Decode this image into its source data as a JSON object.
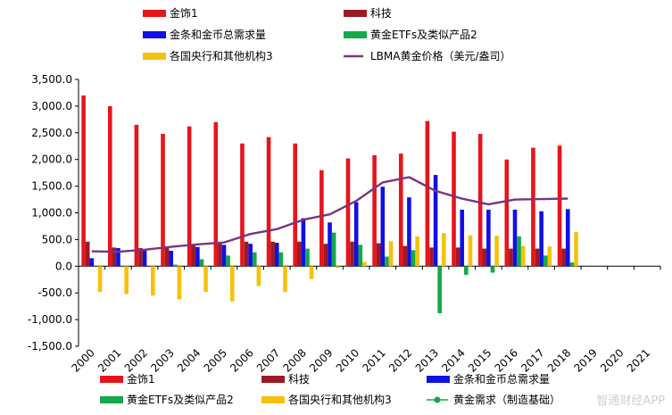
{
  "chart_data": {
    "type": "bar",
    "title": "",
    "xlabel": "",
    "ylabel": "",
    "ylim": [
      -1500,
      3500
    ],
    "yticks": [
      -1500,
      -1000,
      -500,
      0,
      500,
      1000,
      1500,
      2000,
      2500,
      3000,
      3500
    ],
    "ytick_labels": [
      "-1,500.0",
      "-1,000.0",
      "-500.0",
      "0.0",
      "500.0",
      "1,000.0",
      "1,500.0",
      "2,000.0",
      "2,500.0",
      "3,000.0",
      "3,500.0"
    ],
    "categories": [
      "2000",
      "2001",
      "2002",
      "2003",
      "2004",
      "2005",
      "2006",
      "2007",
      "2008",
      "2009",
      "2010",
      "2011",
      "2012",
      "2013",
      "2014",
      "2015",
      "2016",
      "2017",
      "2018",
      "2019",
      "2020",
      "2021"
    ],
    "series": [
      {
        "name": "金饰1",
        "kind": "bar",
        "color": "#e8141b",
        "values": [
          3200,
          3000,
          2650,
          2480,
          2620,
          2700,
          2300,
          2420,
          2300,
          1800,
          2020,
          2080,
          2110,
          2720,
          2520,
          2480,
          2000,
          2220,
          2260,
          null,
          null,
          null
        ]
      },
      {
        "name": "科技",
        "kind": "bar",
        "color": "#9b1b24",
        "values": [
          460,
          350,
          340,
          370,
          410,
          440,
          460,
          460,
          460,
          420,
          460,
          430,
          380,
          350,
          350,
          330,
          330,
          330,
          330,
          null,
          null,
          null
        ]
      },
      {
        "name": "金条和金币总需求量",
        "kind": "bar",
        "color": "#1010e6",
        "values": [
          150,
          340,
          300,
          290,
          360,
          400,
          420,
          440,
          900,
          820,
          1200,
          1490,
          1290,
          1710,
          1060,
          1060,
          1060,
          1030,
          1070,
          null,
          null,
          null
        ]
      },
      {
        "name": "黄金ETFs及类似产品2",
        "kind": "bar",
        "color": "#13a84a",
        "values": [
          0,
          0,
          0,
          30,
          130,
          200,
          260,
          260,
          330,
          630,
          400,
          180,
          300,
          -880,
          -160,
          -120,
          560,
          200,
          70,
          null,
          null,
          null
        ]
      },
      {
        "name": "各国央行和其他机构3",
        "kind": "bar",
        "color": "#f6c10a",
        "values": [
          -480,
          -520,
          -550,
          -620,
          -480,
          -660,
          -370,
          -480,
          -240,
          -30,
          80,
          470,
          560,
          620,
          580,
          570,
          380,
          370,
          640,
          null,
          null,
          null
        ]
      },
      {
        "name": "LBMA黄金价格（美元/盎司）",
        "kind": "line",
        "color": "#7a3580",
        "values": [
          279,
          271,
          310,
          363,
          409,
          444,
          603,
          695,
          871,
          972,
          1224,
          1571,
          1669,
          1411,
          1266,
          1160,
          1250,
          1257,
          1268,
          null,
          null,
          null
        ]
      }
    ],
    "legend_top": [
      "金饰1",
      "科技",
      "金条和金币总需求量",
      "黄金ETFs及类似产品2",
      "各国央行和其他机构3",
      "LBMA黄金价格（美元/盎司）"
    ],
    "legend_bottom": [
      "金饰1",
      "科技",
      "金条和金币总需求量",
      "黄金ETFs及类似产品2",
      "各国央行和其他机构3",
      "黄金需求（制造基础）"
    ],
    "legend_bottom_extra_color": "#13a84a"
  },
  "watermark": "智通财经APP"
}
